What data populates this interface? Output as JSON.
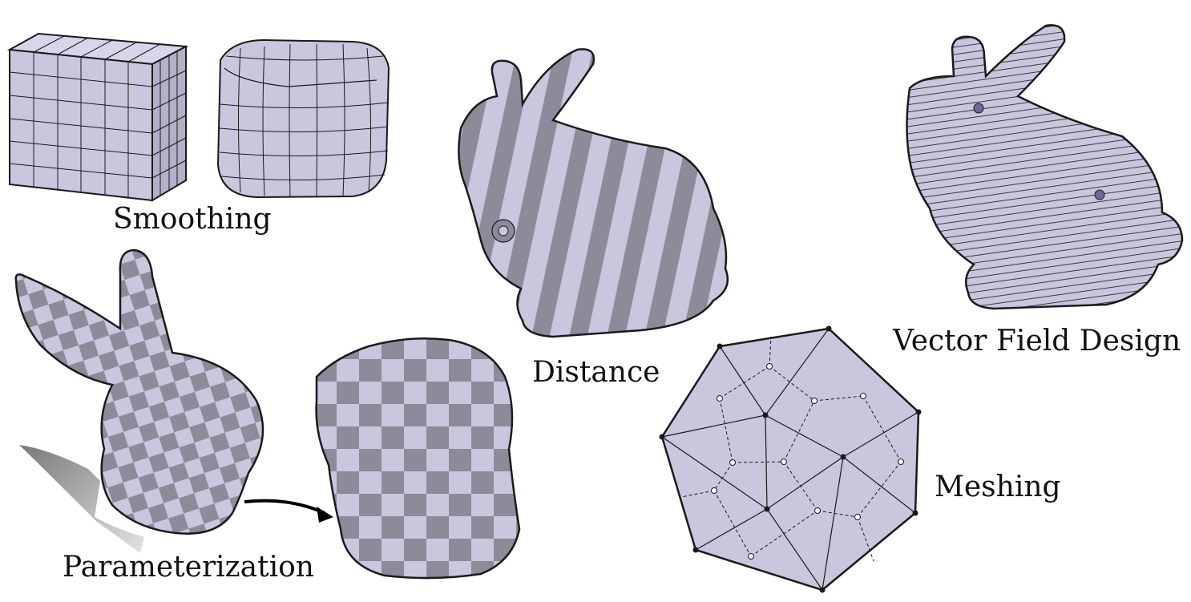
{
  "labels": {
    "smoothing": "Smoothing",
    "distance": "Distance",
    "vector_field_design": "Vector Field Design",
    "meshing": "Meshing",
    "parameterization": "Parameterization"
  },
  "colors": {
    "surface": "#c9c6de",
    "dark": "#8d8a99",
    "line": "#1a1a1a",
    "shadow": "#888888"
  }
}
